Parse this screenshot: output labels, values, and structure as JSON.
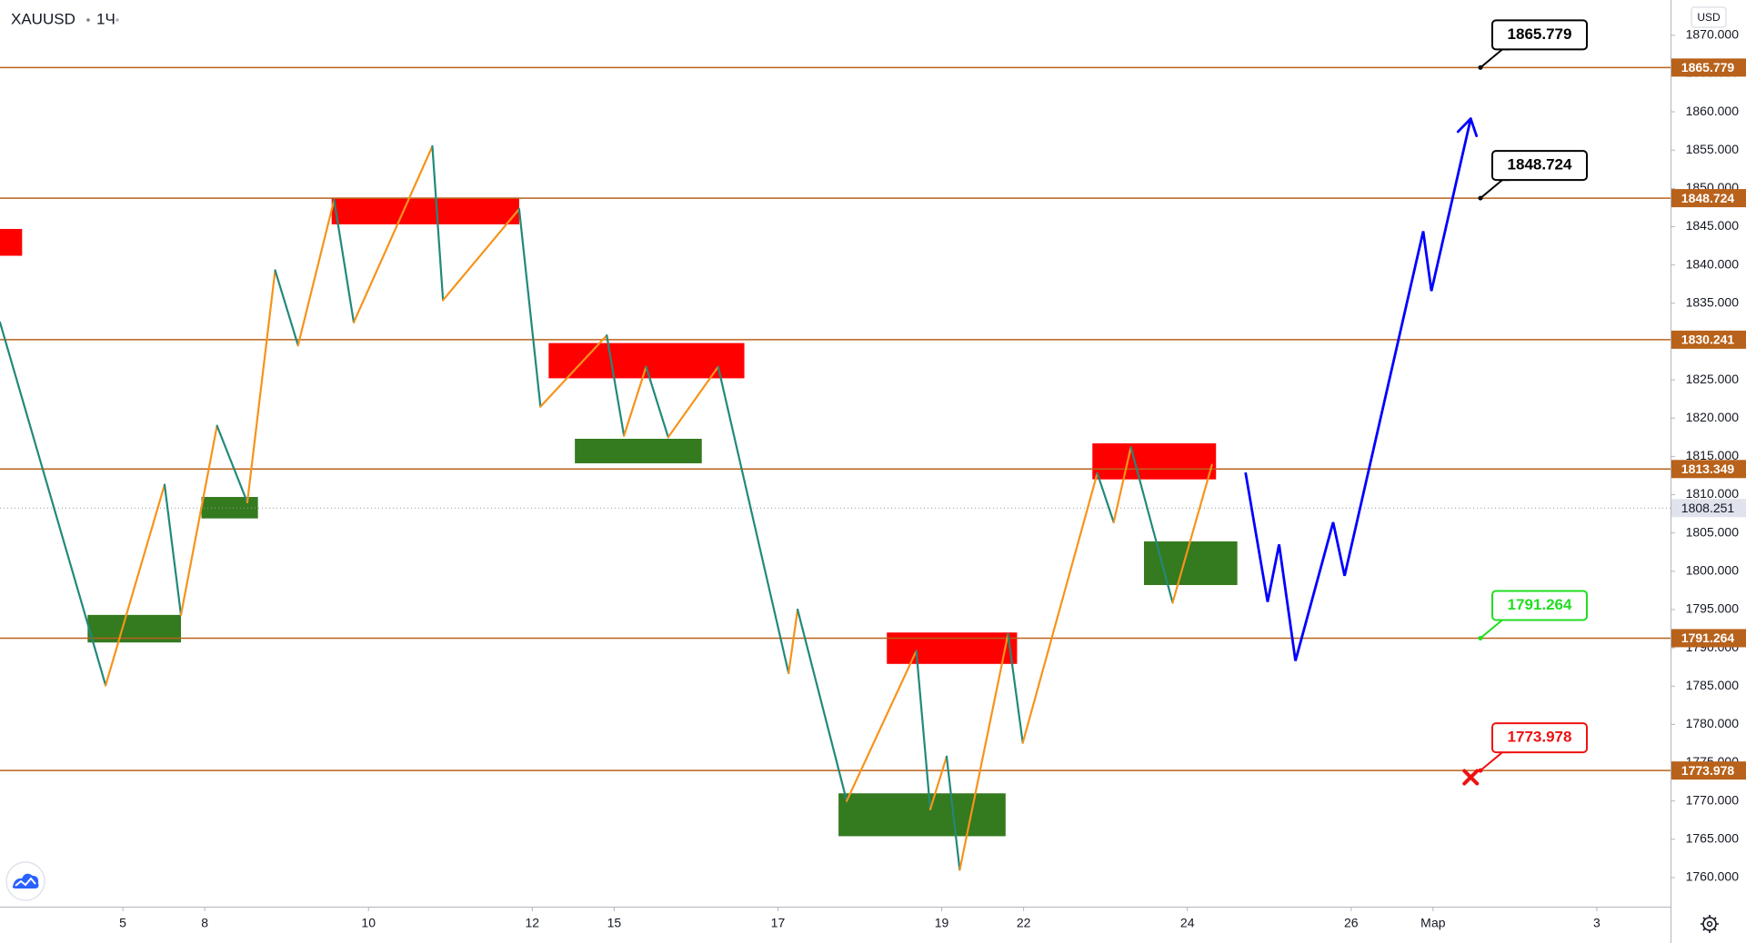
{
  "chart_data": {
    "type": "line",
    "title": "XAUUSD",
    "interval": "1Ч",
    "currency": "USD",
    "xlim": [
      -1.5,
      18.9
    ],
    "xticks": [
      {
        "value": 0,
        "label": "5"
      },
      {
        "value": 1,
        "label": "8"
      },
      {
        "value": 3,
        "label": "10"
      },
      {
        "value": 5,
        "label": "12"
      },
      {
        "value": 6,
        "label": "15"
      },
      {
        "value": 8,
        "label": "17"
      },
      {
        "value": 10,
        "label": "19"
      },
      {
        "value": 11,
        "label": "22"
      },
      {
        "value": 13,
        "label": "24"
      },
      {
        "value": 15,
        "label": "26"
      },
      {
        "value": 16,
        "label": "Мар"
      },
      {
        "value": 18,
        "label": "3"
      }
    ],
    "ylim": [
      1756.2,
      1874.6
    ],
    "yticks": [
      {
        "value": 1760,
        "label": "1760.000"
      },
      {
        "value": 1765,
        "label": "1765.000"
      },
      {
        "value": 1770,
        "label": "1770.000"
      },
      {
        "value": 1775,
        "label": "1775.000"
      },
      {
        "value": 1780,
        "label": "1780.000"
      },
      {
        "value": 1785,
        "label": "1785.000"
      },
      {
        "value": 1790,
        "label": "1790.000"
      },
      {
        "value": 1795,
        "label": "1795.000"
      },
      {
        "value": 1800,
        "label": "1800.000"
      },
      {
        "value": 1805,
        "label": "1805.000"
      },
      {
        "value": 1810,
        "label": "1810.000"
      },
      {
        "value": 1815,
        "label": "1815.000"
      },
      {
        "value": 1820,
        "label": "1820.000"
      },
      {
        "value": 1825,
        "label": "1825.000"
      },
      {
        "value": 1830,
        "label": "1830.000"
      },
      {
        "value": 1835,
        "label": "1835.000"
      },
      {
        "value": 1840,
        "label": "1840.000"
      },
      {
        "value": 1845,
        "label": "1845.000"
      },
      {
        "value": 1850,
        "label": "1850.000"
      },
      {
        "value": 1855,
        "label": "1855.000"
      },
      {
        "value": 1860,
        "label": "1860.000"
      },
      {
        "value": 1865,
        "label": "1865.000"
      },
      {
        "value": 1870,
        "label": "1870.000"
      }
    ],
    "levels": [
      {
        "value": 1865.779,
        "color": "#b8621b"
      },
      {
        "value": 1848.724,
        "color": "#b8621b"
      },
      {
        "value": 1830.241,
        "color": "#b8621b"
      },
      {
        "value": 1813.349,
        "color": "#b8621b"
      },
      {
        "value": 1791.264,
        "color": "#b8621b"
      },
      {
        "value": 1773.978,
        "color": "#b8621b"
      }
    ],
    "current_price": 1808.251,
    "callouts": [
      {
        "value": 1865.779,
        "color": "#000000"
      },
      {
        "value": 1848.724,
        "color": "#000000"
      },
      {
        "value": 1791.264,
        "color": "#22dd22"
      },
      {
        "value": 1773.978,
        "color": "#ee1111"
      }
    ],
    "zones": [
      {
        "x": [
          -1.5,
          -1.23
        ],
        "y": [
          1841.2,
          1844.7
        ],
        "color": "#ff0000"
      },
      {
        "x": [
          2.55,
          4.84
        ],
        "y": [
          1845.3,
          1848.8
        ],
        "color": "#ff0000"
      },
      {
        "x": [
          5.2,
          7.59
        ],
        "y": [
          1825.2,
          1829.8
        ],
        "color": "#ff0000"
      },
      {
        "x": [
          9.33,
          10.92
        ],
        "y": [
          1787.9,
          1792.0
        ],
        "color": "#ff0000"
      },
      {
        "x": [
          11.84,
          13.35
        ],
        "y": [
          1812.0,
          1816.7
        ],
        "color": "#ff0000"
      },
      {
        "x": [
          -0.43,
          0.71
        ],
        "y": [
          1790.7,
          1794.3
        ],
        "color": "#347a1f"
      },
      {
        "x": [
          0.96,
          1.65
        ],
        "y": [
          1806.9,
          1809.7
        ],
        "color": "#347a1f"
      },
      {
        "x": [
          5.52,
          7.07
        ],
        "y": [
          1814.1,
          1817.3
        ],
        "color": "#347a1f"
      },
      {
        "x": [
          8.74,
          10.78
        ],
        "y": [
          1765.4,
          1771.0
        ],
        "color": "#347a1f"
      },
      {
        "x": [
          12.47,
          13.61
        ],
        "y": [
          1798.2,
          1803.9
        ],
        "color": "#347a1f"
      }
    ],
    "swing": {
      "up_color": "#f7931a",
      "down_color": "#22897a",
      "x": [
        -1.5,
        -0.21,
        0.51,
        0.71,
        1.15,
        1.52,
        1.86,
        2.14,
        2.58,
        2.82,
        3.78,
        3.91,
        4.84,
        5.1,
        5.91,
        6.12,
        6.39,
        6.66,
        7.27,
        8.13,
        8.24,
        8.84,
        9.69,
        9.86,
        10.06,
        10.22,
        10.81,
        10.99,
        11.9,
        12.1,
        12.31,
        12.82,
        13.3
      ],
      "values": [
        1832.5,
        1785.1,
        1811.3,
        1794.3,
        1819.0,
        1809.0,
        1839.3,
        1829.5,
        1848.5,
        1832.5,
        1855.5,
        1835.4,
        1847.3,
        1821.5,
        1830.8,
        1817.7,
        1826.7,
        1817.5,
        1826.7,
        1786.7,
        1795.0,
        1770.0,
        1789.6,
        1768.9,
        1775.8,
        1761.0,
        1791.8,
        1777.6,
        1812.8,
        1806.4,
        1816.2,
        1795.9,
        1813.9
      ]
    },
    "projection": {
      "color": "#0000ff",
      "x": [
        13.71,
        13.98,
        14.12,
        14.32,
        14.78,
        14.92,
        15.88,
        15.98,
        16.46
      ],
      "values": [
        1812.9,
        1796.0,
        1803.5,
        1788.3,
        1806.4,
        1799.4,
        1844.4,
        1836.6,
        1859.1
      ]
    },
    "stop_marker": {
      "x": 16.46,
      "value": 1773.1,
      "color": "#ee1111"
    }
  }
}
